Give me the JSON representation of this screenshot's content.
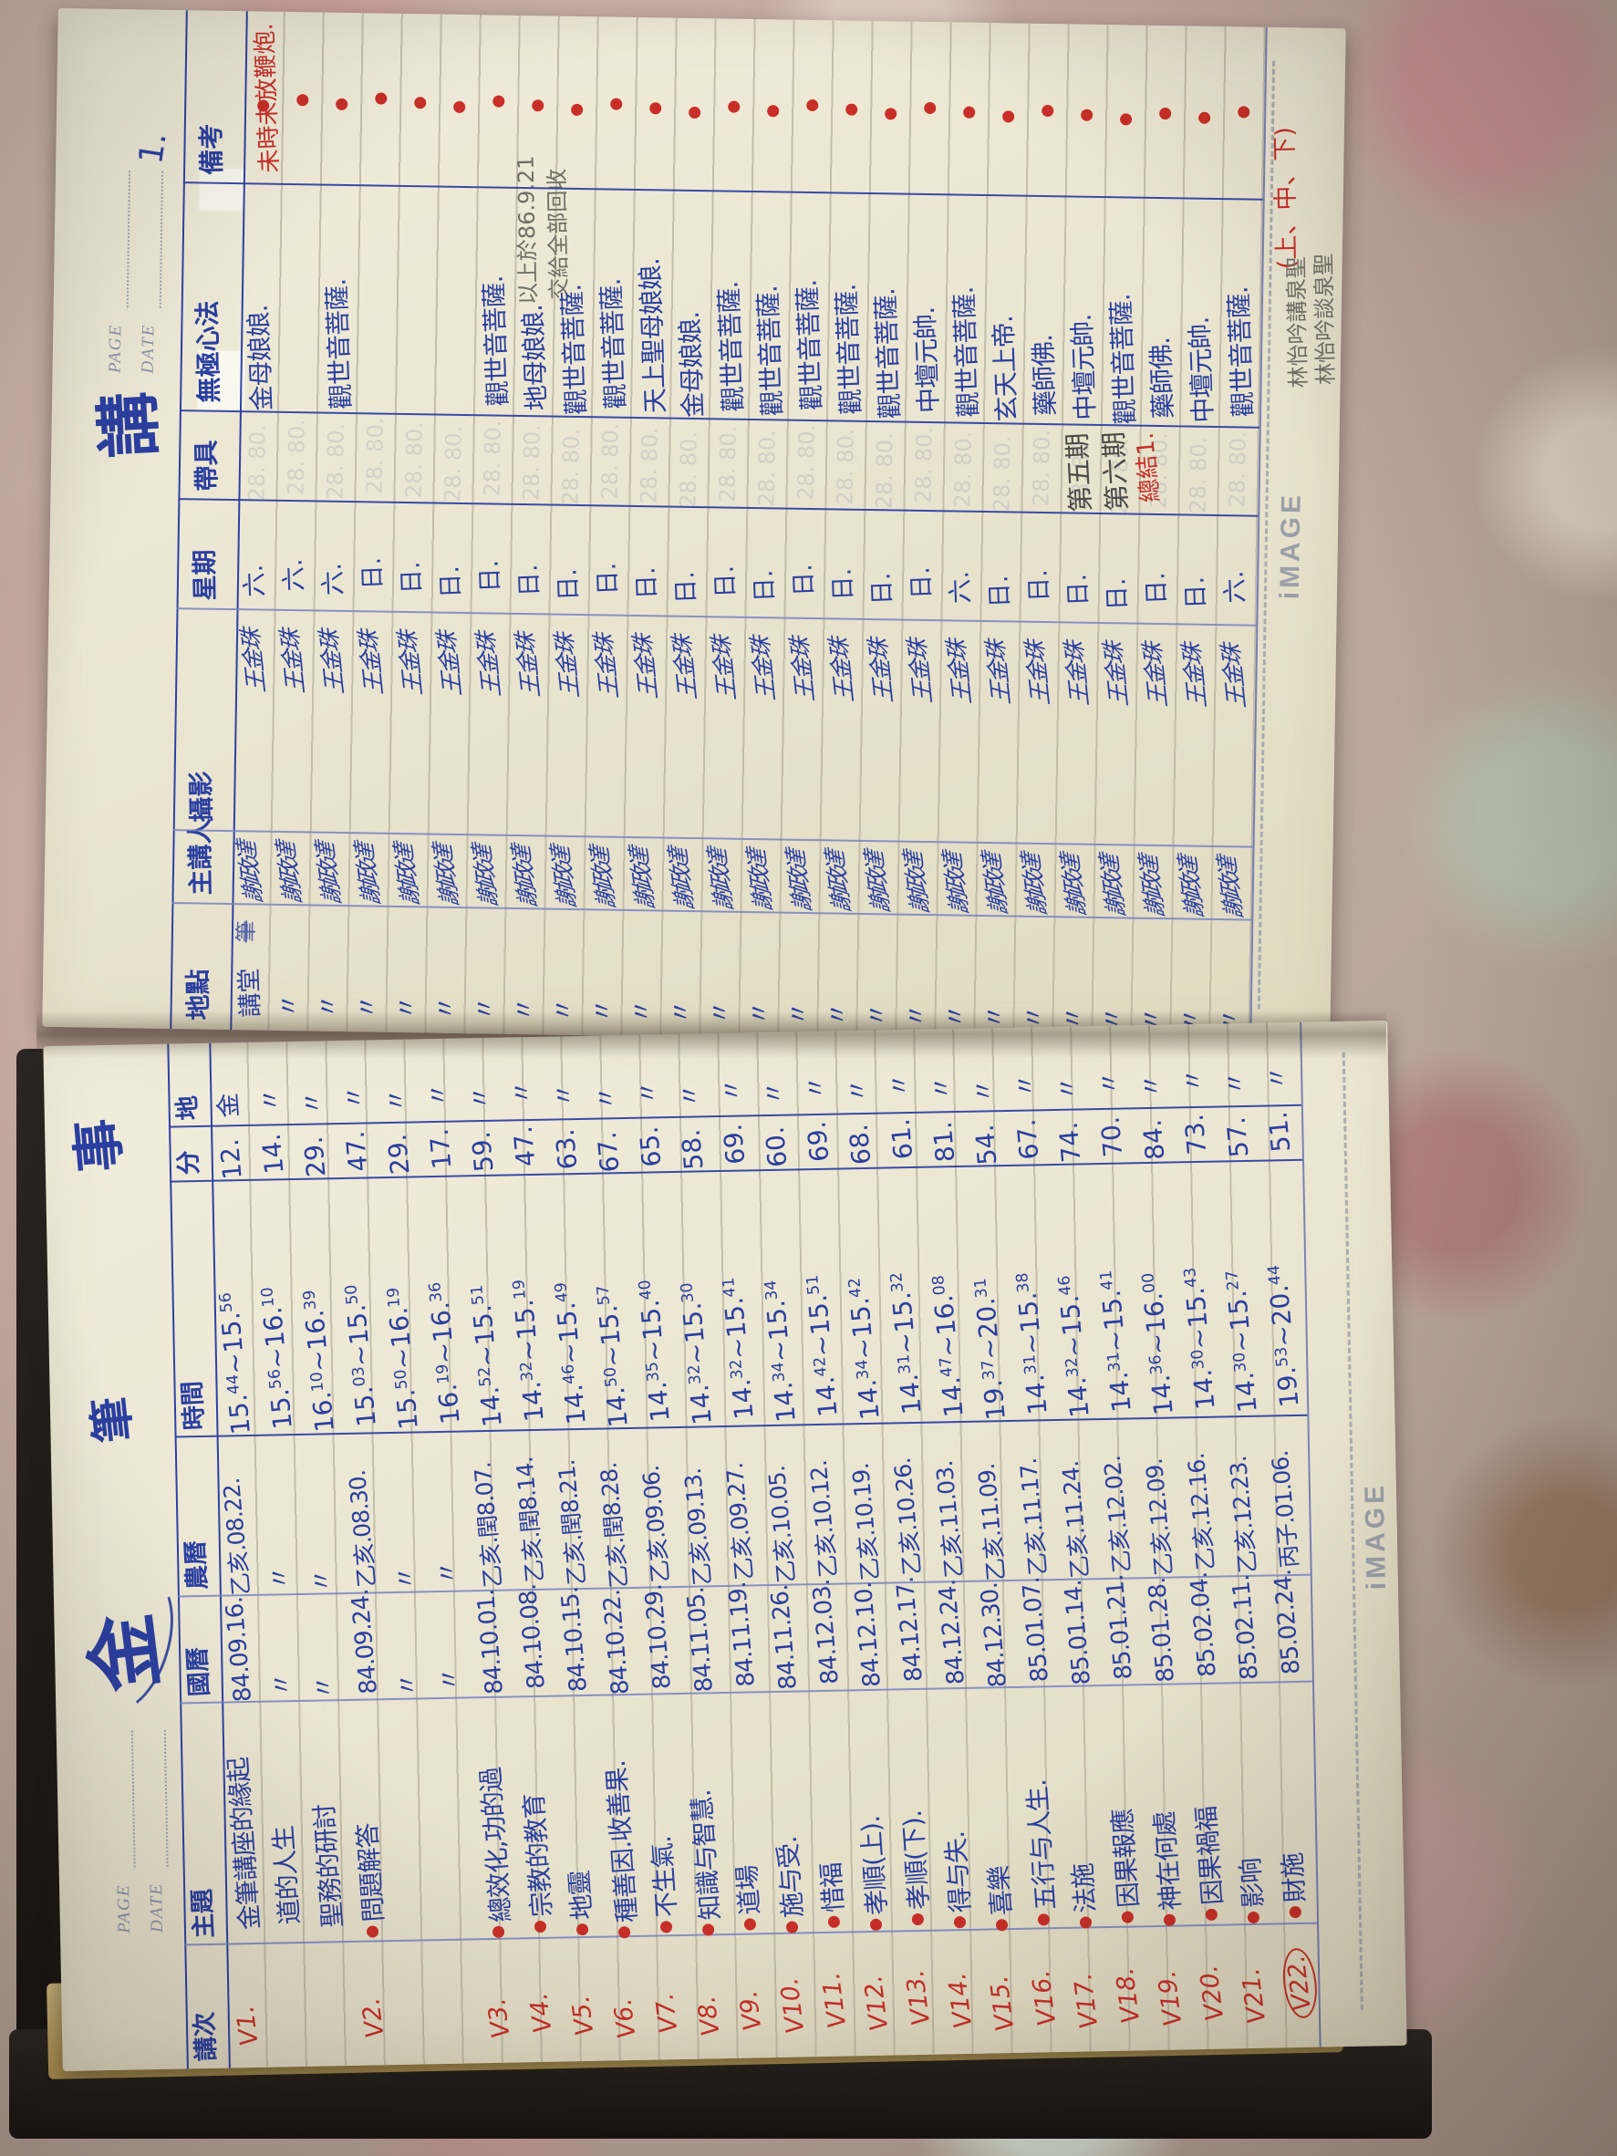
{
  "brand": "iMAGE",
  "printed": {
    "page_label": "PAGE",
    "date_label": "DATE"
  },
  "right_page": {
    "margin_title": "講",
    "page_number": "1.",
    "header": {
      "place": "地點",
      "speaker": "主講人",
      "photog": "攝影",
      "weekday": "星期",
      "tape": "帶具",
      "dharma": "無極心法",
      "remarks": "備考"
    },
    "row1_place": "講堂",
    "speaker_all": "謝政達",
    "photog_all": "王金珠",
    "weekdays": [
      "六",
      "六",
      "六",
      "日",
      "日",
      "日",
      "日",
      "日",
      "日",
      "日",
      "日",
      "日",
      "日",
      "日",
      "日",
      "日",
      "日",
      "日",
      "六",
      "日",
      "日",
      "日",
      "日",
      "日",
      "日",
      "六"
    ],
    "dharma": [
      "金母娘娘.",
      "",
      "觀世音菩薩.",
      "",
      "",
      "",
      "觀世音菩薩.",
      "地母娘娘.",
      "觀世音菩薩.",
      "觀世音菩薩.",
      "天上聖母娘娘.",
      "金母娘娘.",
      "觀世音菩薩.",
      "觀世音菩薩.",
      "觀世音菩薩.",
      "觀世音菩薩.",
      "觀世音菩薩.",
      "中壇元帥.",
      "觀世音菩薩.",
      "玄天上帝.",
      "藥師佛.",
      "中壇元帥.",
      "觀世音菩薩.",
      "藥師佛.",
      "中壇元帥.",
      "觀世音菩薩."
    ],
    "red_note_row1": "未時未放鞭炮.",
    "pencil_notes": [
      "以上於86.9.21",
      "交給全部回收"
    ],
    "tape_notes": [
      {
        "text": "第五期",
        "type": "pencil"
      },
      {
        "text": "第六期",
        "type": "pencil"
      },
      {
        "text": "總結1.",
        "type": "red"
      }
    ],
    "red_note_bottom": "(上、中、下)",
    "margin_pencil": [
      "林怡吟講泉聖",
      "林怡吟談泉聖"
    ],
    "bleedthrough_sample": "28. 80.",
    "strike_note": "筆"
  },
  "left_page": {
    "margin_titles": [
      "金",
      "筆",
      "事"
    ],
    "header": {
      "no": "講次",
      "topic": "主題",
      "solar": "國曆",
      "lunar": "農曆",
      "time": "時間",
      "min": "分",
      "place": "地"
    },
    "rows": [
      {
        "v": "V1",
        "circled": false,
        "dot": false,
        "topic": "金筆講座的緣起",
        "solar": "84.09.16.",
        "lunar": "乙亥.08.22.",
        "time": "15.44~15.56",
        "min": "12",
        "place": "金"
      },
      {
        "v": "",
        "dot": false,
        "topic": "道的人生",
        "solar": "〃",
        "lunar": "〃",
        "time": "15.56~16.10",
        "min": "14",
        "place": "〃"
      },
      {
        "v": "",
        "dot": false,
        "topic": "聖務的研討",
        "solar": "〃",
        "lunar": "〃",
        "time": "16.10~16.39",
        "min": "29",
        "place": "〃"
      },
      {
        "v": "V2",
        "circled": false,
        "dot": true,
        "topic": "問題解答",
        "solar": "84.09.24.",
        "lunar": "乙亥.08.30.",
        "time": "15.03~15.50",
        "min": "47",
        "place": "〃"
      },
      {
        "v": "",
        "dot": false,
        "topic": "",
        "solar": "〃",
        "lunar": "〃",
        "time": "15.50~16.19",
        "min": "29",
        "place": "〃"
      },
      {
        "v": "",
        "dot": false,
        "topic": "",
        "solar": "〃",
        "lunar": "〃",
        "time": "16.19~16.36",
        "min": "17",
        "place": "〃"
      },
      {
        "v": "V3",
        "circled": false,
        "dot": true,
        "topic": "總效化,功的過",
        "solar": "84.10.01.",
        "lunar": "乙亥.閏8.07.",
        "time": "14.52~15.51",
        "min": "59",
        "place": "〃"
      },
      {
        "v": "V4",
        "circled": false,
        "dot": true,
        "topic": "宗教的教育",
        "solar": "84.10.08.",
        "lunar": "乙亥.閏8.14.",
        "time": "14.32~15.19",
        "min": "47",
        "place": "〃"
      },
      {
        "v": "V5",
        "circled": false,
        "dot": true,
        "topic": "地靈",
        "solar": "84.10.15.",
        "lunar": "乙亥.閏8.21.",
        "time": "14.46~15.49",
        "min": "63",
        "place": "〃"
      },
      {
        "v": "V6",
        "circled": false,
        "dot": true,
        "topic": "種善因.收善果.",
        "solar": "84.10.22.",
        "lunar": "乙亥.閏8.28.",
        "time": "14.50~15.57",
        "min": "67",
        "place": "〃"
      },
      {
        "v": "V7",
        "circled": false,
        "dot": true,
        "topic": "不生氣.",
        "solar": "84.10.29.",
        "lunar": "乙亥.09.06.",
        "time": "14.35~15.40",
        "min": "65",
        "place": "〃"
      },
      {
        "v": "V8",
        "circled": false,
        "dot": true,
        "topic": "知識与智慧.",
        "solar": "84.11.05.",
        "lunar": "乙亥.09.13.",
        "time": "14.32~15.30",
        "min": "58",
        "place": "〃"
      },
      {
        "v": "V9",
        "circled": false,
        "dot": true,
        "topic": "道場",
        "solar": "84.11.19.",
        "lunar": "乙亥.09.27.",
        "time": "14.32~15.41",
        "min": "69",
        "place": "〃"
      },
      {
        "v": "V10",
        "circled": false,
        "dot": true,
        "topic": "施与受.",
        "solar": "84.11.26.",
        "lunar": "乙亥.10.05.",
        "time": "14.34~15.34",
        "min": "60",
        "place": "〃"
      },
      {
        "v": "V11",
        "circled": false,
        "dot": true,
        "topic": "惜福",
        "solar": "84.12.03.",
        "lunar": "乙亥.10.12.",
        "time": "14.42~15.51",
        "min": "69",
        "place": "〃"
      },
      {
        "v": "V12",
        "circled": false,
        "dot": true,
        "topic": "孝順(上).",
        "solar": "84.12.10.",
        "lunar": "乙亥.10.19.",
        "time": "14.34~15.42",
        "min": "68",
        "place": "〃"
      },
      {
        "v": "V13",
        "circled": false,
        "dot": true,
        "topic": "孝順(下).",
        "solar": "84.12.17.",
        "lunar": "乙亥.10.26.",
        "time": "14.31~15.32",
        "min": "61",
        "place": "〃"
      },
      {
        "v": "V14",
        "circled": false,
        "dot": true,
        "topic": "得与失.",
        "solar": "84.12.24.",
        "lunar": "乙亥.11.03.",
        "time": "14.47~16.08",
        "min": "81",
        "place": "〃"
      },
      {
        "v": "V15",
        "circled": false,
        "dot": true,
        "topic": "喜樂",
        "solar": "84.12.30.",
        "lunar": "乙亥.11.09.",
        "time": "19.37~20.31",
        "min": "54",
        "place": "〃"
      },
      {
        "v": "V16",
        "circled": false,
        "dot": true,
        "topic": "五行与人生.",
        "solar": "85.01.07.",
        "lunar": "乙亥.11.17.",
        "time": "14.31~15.38",
        "min": "67",
        "place": "〃"
      },
      {
        "v": "V17",
        "circled": false,
        "dot": true,
        "topic": "法施",
        "solar": "85.01.14.",
        "lunar": "乙亥.11.24.",
        "time": "14.32~15.46",
        "min": "74",
        "place": "〃"
      },
      {
        "v": "V18",
        "circled": false,
        "dot": true,
        "topic": "因果報應",
        "solar": "85.01.21.",
        "lunar": "乙亥.12.02.",
        "time": "14.31~15.41",
        "min": "70",
        "place": "〃"
      },
      {
        "v": "V19",
        "circled": false,
        "dot": true,
        "topic": "神在何處",
        "solar": "85.01.28.",
        "lunar": "乙亥.12.09.",
        "time": "14.36~16.00",
        "min": "84",
        "place": "〃"
      },
      {
        "v": "V20",
        "circled": false,
        "dot": true,
        "topic": "因果禍福",
        "solar": "85.02.04.",
        "lunar": "乙亥.12.16.",
        "time": "14.30~15.43",
        "min": "73",
        "place": "〃"
      },
      {
        "v": "V21",
        "circled": false,
        "dot": true,
        "topic": "影响",
        "solar": "85.02.11.",
        "lunar": "乙亥.12.23.",
        "time": "14.30~15.27",
        "min": "57",
        "place": "〃"
      },
      {
        "v": "V22",
        "circled": true,
        "dot": true,
        "topic": "財施",
        "solar": "85.02.24.",
        "lunar": "丙子.01.06.",
        "time": "19.53~20.44",
        "min": "51",
        "place": "〃"
      }
    ]
  },
  "ink": {
    "blue": "#2b3fa0",
    "red": "#c92f28",
    "pencil": "#6f6e67"
  }
}
